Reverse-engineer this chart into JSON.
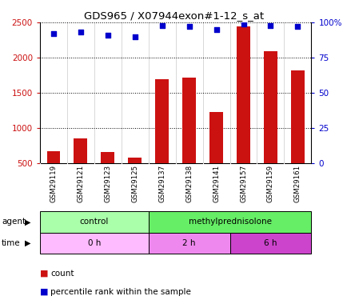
{
  "title": "GDS965 / X07944exon#1-12_s_at",
  "samples": [
    "GSM29119",
    "GSM29121",
    "GSM29123",
    "GSM29125",
    "GSM29137",
    "GSM29138",
    "GSM29141",
    "GSM29157",
    "GSM29159",
    "GSM29161"
  ],
  "counts": [
    670,
    860,
    665,
    580,
    1700,
    1720,
    1230,
    2440,
    2090,
    1820
  ],
  "percentiles": [
    92,
    93,
    91,
    90,
    98,
    97,
    95,
    99,
    98,
    97
  ],
  "ylim_left": [
    500,
    2500
  ],
  "ylim_right": [
    0,
    100
  ],
  "yticks_left": [
    500,
    1000,
    1500,
    2000,
    2500
  ],
  "yticks_right": [
    0,
    25,
    50,
    75,
    100
  ],
  "bar_color": "#cc1111",
  "scatter_color": "#0000cc",
  "bar_bottom": 500,
  "agent_labels": [
    {
      "label": "control",
      "start": 0,
      "end": 4,
      "color": "#aaffaa"
    },
    {
      "label": "methylprednisolone",
      "start": 4,
      "end": 10,
      "color": "#66ee66"
    }
  ],
  "time_labels": [
    {
      "label": "0 h",
      "start": 0,
      "end": 4,
      "color": "#ffbbff"
    },
    {
      "label": "2 h",
      "start": 4,
      "end": 7,
      "color": "#ee88ee"
    },
    {
      "label": "6 h",
      "start": 7,
      "end": 10,
      "color": "#cc44cc"
    }
  ],
  "legend_count_color": "#cc1111",
  "legend_pct_color": "#0000cc",
  "bg_color": "#ffffff",
  "tick_label_color_left": "#cc1111",
  "tick_label_color_right": "#0000cc",
  "grid_color": "#000000",
  "sample_box_color": "#cccccc",
  "figsize": [
    4.35,
    3.75
  ],
  "dpi": 100
}
